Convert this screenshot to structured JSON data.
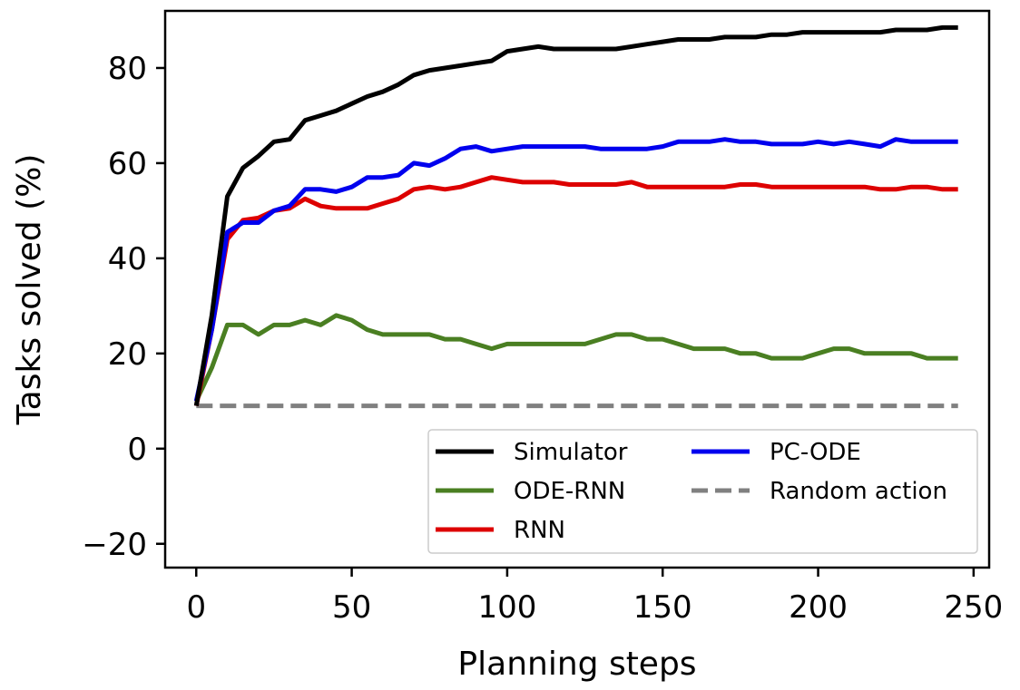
{
  "chart_data": {
    "type": "line",
    "xlabel": "Planning steps",
    "ylabel": "Tasks solved (%)",
    "xlim": [
      -10,
      255
    ],
    "ylim": [
      -25,
      92
    ],
    "xticks": [
      0,
      50,
      100,
      150,
      200,
      250
    ],
    "yticks": [
      -20,
      0,
      20,
      40,
      60,
      80
    ],
    "legend": {
      "placement": "lower-right",
      "columns": 2
    },
    "grid": false,
    "x": [
      0,
      5,
      10,
      15,
      20,
      25,
      30,
      35,
      40,
      45,
      50,
      55,
      60,
      65,
      70,
      75,
      80,
      85,
      90,
      95,
      100,
      105,
      110,
      115,
      120,
      125,
      130,
      135,
      140,
      145,
      150,
      155,
      160,
      165,
      170,
      175,
      180,
      185,
      190,
      195,
      200,
      205,
      210,
      215,
      220,
      225,
      230,
      235,
      240,
      245
    ],
    "series": [
      {
        "name": "Simulator",
        "color": "#000000",
        "style": "solid",
        "values": [
          9,
          28,
          53,
          59,
          61.5,
          64.5,
          65,
          69,
          70,
          71,
          72.5,
          74,
          75,
          76.5,
          78.5,
          79.5,
          80,
          80.5,
          81,
          81.5,
          83.5,
          84,
          84.5,
          84,
          84,
          84,
          84,
          84,
          84.5,
          85,
          85.5,
          86,
          86,
          86,
          86.5,
          86.5,
          86.5,
          87,
          87,
          87.5,
          87.5,
          87.5,
          87.5,
          87.5,
          87.5,
          88,
          88,
          88,
          88.5,
          88.5
        ]
      },
      {
        "name": "ODE-RNN",
        "color": "#4a7f22",
        "style": "solid",
        "values": [
          10,
          17,
          26,
          26,
          24,
          26,
          26,
          27,
          26,
          28,
          27,
          25,
          24,
          24,
          24,
          24,
          23,
          23,
          22,
          21,
          22,
          22,
          22,
          22,
          22,
          22,
          23,
          24,
          24,
          23,
          23,
          22,
          21,
          21,
          21,
          20,
          20,
          19,
          19,
          19,
          20,
          21,
          21,
          20,
          20,
          20,
          20,
          19,
          19,
          19
        ]
      },
      {
        "name": "RNN",
        "color": "#dd0000",
        "style": "solid",
        "values": [
          9,
          25,
          44,
          48,
          48.5,
          50,
          50.5,
          52.5,
          51,
          50.5,
          50.5,
          50.5,
          51.5,
          52.5,
          54.5,
          55,
          54.5,
          55,
          56,
          57,
          56.5,
          56,
          56,
          56,
          55.5,
          55.5,
          55.5,
          55.5,
          56,
          55,
          55,
          55,
          55,
          55,
          55,
          55.5,
          55.5,
          55,
          55,
          55,
          55,
          55,
          55,
          55,
          54.5,
          54.5,
          55,
          55,
          54.5,
          54.5
        ]
      },
      {
        "name": "PC-ODE",
        "color": "#0000ee",
        "style": "solid",
        "values": [
          10,
          25,
          45.5,
          47.5,
          47.5,
          50,
          51,
          54.5,
          54.5,
          54,
          55,
          57,
          57,
          57.5,
          60,
          59.5,
          61,
          63,
          63.5,
          62.5,
          63,
          63.5,
          63.5,
          63.5,
          63.5,
          63.5,
          63,
          63,
          63,
          63,
          63.5,
          64.5,
          64.5,
          64.5,
          65,
          64.5,
          64.5,
          64,
          64,
          64,
          64.5,
          64,
          64.5,
          64,
          63.5,
          65,
          64.5,
          64.5,
          64.5,
          64.5
        ]
      },
      {
        "name": "Random action",
        "color": "#808080",
        "style": "dashed",
        "values": [
          9,
          9,
          9,
          9,
          9,
          9,
          9,
          9,
          9,
          9,
          9,
          9,
          9,
          9,
          9,
          9,
          9,
          9,
          9,
          9,
          9,
          9,
          9,
          9,
          9,
          9,
          9,
          9,
          9,
          9,
          9,
          9,
          9,
          9,
          9,
          9,
          9,
          9,
          9,
          9,
          9,
          9,
          9,
          9,
          9,
          9,
          9,
          9,
          9,
          9
        ]
      }
    ],
    "legend_order": [
      "Simulator",
      "ODE-RNN",
      "RNN",
      "PC-ODE",
      "Random action"
    ]
  }
}
